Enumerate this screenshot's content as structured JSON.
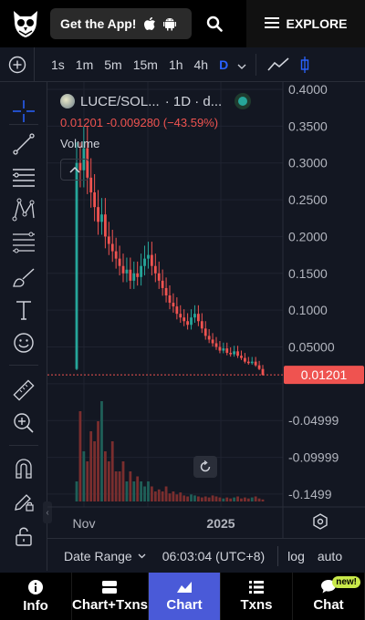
{
  "header": {
    "get_app_label": "Get the App!",
    "explore_label": "EXPLORE"
  },
  "timeframes": [
    "1s",
    "1m",
    "5m",
    "15m",
    "1h",
    "4h",
    "D"
  ],
  "active_timeframe": "D",
  "legend": {
    "symbol": "LUCE/SOL...",
    "interval": "· 1D · d...",
    "ohlc_text": "0.01201 -0.009280 (−43.59%)",
    "volume_label": "Volume"
  },
  "price_axis": {
    "labels": [
      "0.4000",
      "0.3500",
      "0.3000",
      "0.2500",
      "0.2000",
      "0.1500",
      "0.1000",
      "0.05000",
      "0.01",
      "-0.04999",
      "-0.09999",
      "-0.1499"
    ],
    "current_price": "0.01201"
  },
  "time_axis": {
    "labels": [
      "Nov",
      "2025"
    ]
  },
  "bottom_toolbar": {
    "date_range_label": "Date Range",
    "time_label": "06:03:04 (UTC+8)",
    "log_label": "log",
    "auto_label": "auto"
  },
  "nav": {
    "items": [
      {
        "label": "Info"
      },
      {
        "label": "Chart+Txns"
      },
      {
        "label": "Chart"
      },
      {
        "label": "Txns"
      },
      {
        "label": "Chat"
      }
    ],
    "active": "Chart",
    "new_badge": "new!"
  },
  "colors": {
    "up": "#26a69a",
    "down": "#ef5350",
    "background": "#131722",
    "accent": "#2962ff",
    "nav_active": "#4a5ad8"
  },
  "chart_data": {
    "type": "candlestick",
    "interval": "1D",
    "price": [
      0.3,
      0.29,
      0.32,
      0.28,
      0.26,
      0.24,
      0.22,
      0.23,
      0.2,
      0.19,
      0.18,
      0.17,
      0.16,
      0.15,
      0.155,
      0.14,
      0.15,
      0.145,
      0.16,
      0.17,
      0.175,
      0.16,
      0.15,
      0.14,
      0.13,
      0.12,
      0.11,
      0.105,
      0.095,
      0.09,
      0.085,
      0.08,
      0.09,
      0.095,
      0.085,
      0.075,
      0.065,
      0.06,
      0.055,
      0.05,
      0.045,
      0.048,
      0.042,
      0.04,
      0.044,
      0.038,
      0.035,
      0.03,
      0.028,
      0.03,
      0.025,
      0.02,
      0.012
    ],
    "volume_relative": [
      0.2,
      0.9,
      0.5,
      0.4,
      0.7,
      0.6,
      0.8,
      1.0,
      0.5,
      0.4,
      0.6,
      0.3,
      0.3,
      0.4,
      0.2,
      0.3,
      0.2,
      0.25,
      0.2,
      0.15,
      0.2,
      0.15,
      0.1,
      0.12,
      0.1,
      0.15,
      0.08,
      0.1,
      0.07,
      0.09,
      0.06,
      0.05,
      0.07,
      0.06,
      0.05,
      0.04,
      0.05,
      0.04,
      0.06,
      0.05,
      0.04,
      0.03,
      0.04,
      0.03,
      0.04,
      0.05,
      0.03,
      0.04,
      0.03,
      0.04,
      0.05,
      0.03,
      0.02
    ],
    "y_axis_range": [
      -0.16,
      0.4
    ],
    "current_price": 0.01201,
    "x_labels": [
      "Nov",
      "2025"
    ]
  }
}
